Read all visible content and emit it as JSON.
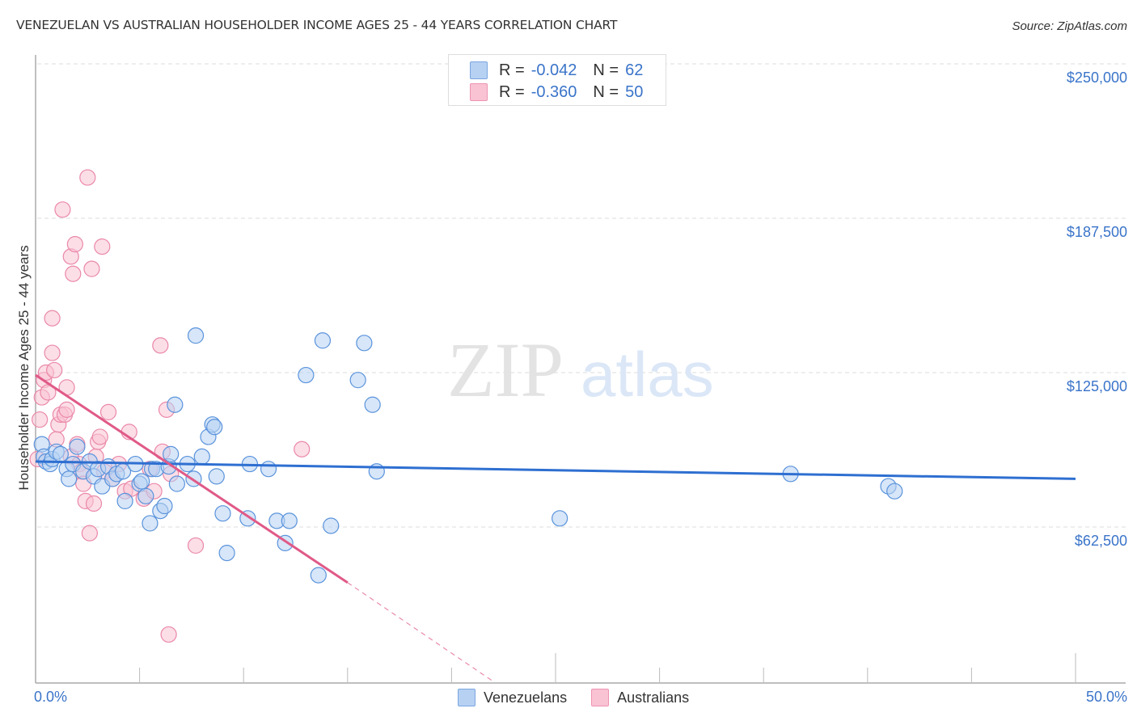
{
  "title": "VENEZUELAN VS AUSTRALIAN HOUSEHOLDER INCOME AGES 25 - 44 YEARS CORRELATION CHART",
  "source": "Source: ZipAtlas.com",
  "watermark": {
    "zip": "ZIP",
    "atlas": "atlas"
  },
  "stats": [
    {
      "r_label": "R =",
      "r_value": "-0.042",
      "n_label": "N =",
      "n_value": "62",
      "color": "#b7d1f3",
      "border": "#7aa6e0"
    },
    {
      "r_label": "R =",
      "r_value": "-0.360",
      "n_label": "N =",
      "n_value": "50",
      "color": "#f9c3d4",
      "border": "#ee93b0"
    }
  ],
  "legend": [
    {
      "label": "Venezuelans",
      "color": "#b7d1f3",
      "border": "#7aa6e0"
    },
    {
      "label": "Australians",
      "color": "#f9c3d4",
      "border": "#ee93b0"
    }
  ],
  "axes": {
    "ylabel": "Householder Income Ages 25 - 44 years",
    "x_min_label": "0.0%",
    "x_max_label": "50.0%",
    "y_ticks": [
      "$250,000",
      "$187,500",
      "$125,000",
      "$62,500"
    ]
  },
  "chart_data": {
    "type": "scatter",
    "title": "VENEZUELAN VS AUSTRALIAN HOUSEHOLDER INCOME AGES 25 - 44 YEARS CORRELATION CHART",
    "xlabel": "",
    "ylabel": "Householder Income Ages 25 - 44 years",
    "xlim": [
      0,
      50
    ],
    "ylim": [
      0,
      255000
    ],
    "x_tick_labels": [
      "0.0%",
      "50.0%"
    ],
    "y_tick_values": [
      62500,
      125000,
      187500,
      250000
    ],
    "y_tick_labels": [
      "$62,500",
      "$125,000",
      "$187,500",
      "$250,000"
    ],
    "grid": "horizontal dashed",
    "legend_position": "bottom center",
    "series": [
      {
        "name": "Venezuelans",
        "color": "#4f8ddb",
        "R": -0.042,
        "N": 62,
        "trend": {
          "x": [
            0,
            50
          ],
          "y": [
            89000,
            82000
          ]
        },
        "points": [
          [
            0.3,
            96000
          ],
          [
            0.4,
            91000
          ],
          [
            0.5,
            89000
          ],
          [
            0.7,
            88000
          ],
          [
            0.8,
            90000
          ],
          [
            1.0,
            93000
          ],
          [
            1.2,
            92000
          ],
          [
            1.5,
            86000
          ],
          [
            1.6,
            82000
          ],
          [
            1.8,
            88000
          ],
          [
            2.0,
            95000
          ],
          [
            2.3,
            85000
          ],
          [
            2.6,
            89000
          ],
          [
            2.8,
            83000
          ],
          [
            3.0,
            86000
          ],
          [
            3.2,
            79000
          ],
          [
            3.5,
            87000
          ],
          [
            3.7,
            82000
          ],
          [
            3.9,
            84000
          ],
          [
            4.2,
            85000
          ],
          [
            4.3,
            73000
          ],
          [
            4.8,
            88000
          ],
          [
            5.0,
            80000
          ],
          [
            5.1,
            81000
          ],
          [
            5.3,
            75000
          ],
          [
            5.6,
            86000
          ],
          [
            5.5,
            64000
          ],
          [
            5.8,
            86000
          ],
          [
            6.0,
            69000
          ],
          [
            6.2,
            71000
          ],
          [
            6.4,
            87000
          ],
          [
            6.5,
            92000
          ],
          [
            6.7,
            112000
          ],
          [
            6.8,
            80000
          ],
          [
            7.3,
            88000
          ],
          [
            7.6,
            82000
          ],
          [
            7.7,
            140000
          ],
          [
            8.0,
            91000
          ],
          [
            8.3,
            99000
          ],
          [
            8.5,
            104000
          ],
          [
            8.6,
            103000
          ],
          [
            8.7,
            83000
          ],
          [
            9.0,
            68000
          ],
          [
            9.2,
            52000
          ],
          [
            10.2,
            66000
          ],
          [
            10.3,
            88000
          ],
          [
            11.2,
            86000
          ],
          [
            11.6,
            65000
          ],
          [
            12.2,
            65000
          ],
          [
            12.0,
            56000
          ],
          [
            13.0,
            124000
          ],
          [
            13.6,
            43000
          ],
          [
            13.8,
            138000
          ],
          [
            14.2,
            63000
          ],
          [
            15.5,
            122000
          ],
          [
            15.8,
            137000
          ],
          [
            16.2,
            112000
          ],
          [
            16.4,
            85000
          ],
          [
            25.2,
            66000
          ],
          [
            36.3,
            84000
          ],
          [
            41.0,
            79000
          ],
          [
            41.3,
            77000
          ]
        ]
      },
      {
        "name": "Australians",
        "color": "#e8739a",
        "R": -0.36,
        "N": 50,
        "trend": {
          "x": [
            0,
            15
          ],
          "y": [
            124000,
            40000
          ],
          "dashed_extension_to": [
            22,
            0
          ]
        },
        "points": [
          [
            0.1,
            90000
          ],
          [
            0.2,
            106000
          ],
          [
            0.3,
            115000
          ],
          [
            0.4,
            122000
          ],
          [
            0.5,
            125000
          ],
          [
            0.6,
            117000
          ],
          [
            0.8,
            133000
          ],
          [
            0.8,
            147000
          ],
          [
            0.9,
            126000
          ],
          [
            1.0,
            98000
          ],
          [
            1.1,
            104000
          ],
          [
            1.2,
            108000
          ],
          [
            1.3,
            191000
          ],
          [
            1.4,
            108000
          ],
          [
            1.5,
            119000
          ],
          [
            1.5,
            110000
          ],
          [
            1.7,
            91000
          ],
          [
            1.7,
            172000
          ],
          [
            1.8,
            165000
          ],
          [
            1.9,
            177000
          ],
          [
            2.0,
            96000
          ],
          [
            2.1,
            88000
          ],
          [
            2.2,
            85000
          ],
          [
            2.3,
            80000
          ],
          [
            2.4,
            73000
          ],
          [
            2.5,
            204000
          ],
          [
            2.6,
            60000
          ],
          [
            2.7,
            167000
          ],
          [
            2.8,
            72000
          ],
          [
            2.9,
            91000
          ],
          [
            3.0,
            97000
          ],
          [
            3.1,
            99000
          ],
          [
            3.3,
            85000
          ],
          [
            3.2,
            176000
          ],
          [
            3.5,
            109000
          ],
          [
            3.7,
            82000
          ],
          [
            4.0,
            88000
          ],
          [
            4.3,
            77000
          ],
          [
            4.5,
            101000
          ],
          [
            4.6,
            78000
          ],
          [
            5.2,
            74000
          ],
          [
            5.5,
            86000
          ],
          [
            5.7,
            77000
          ],
          [
            6.0,
            136000
          ],
          [
            6.1,
            93000
          ],
          [
            6.3,
            110000
          ],
          [
            6.4,
            19000
          ],
          [
            6.5,
            84000
          ],
          [
            7.7,
            55000
          ],
          [
            12.8,
            94000
          ]
        ]
      }
    ]
  }
}
